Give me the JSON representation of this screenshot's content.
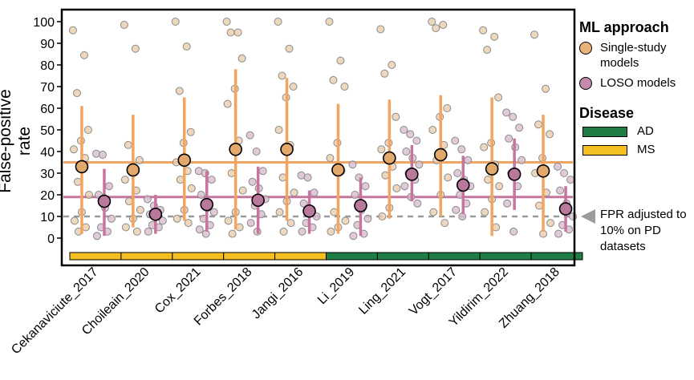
{
  "chart_data": {
    "type": "scatter",
    "ylabel": "False-positive rate",
    "ylim": [
      -5,
      105
    ],
    "yticks": [
      0,
      10,
      20,
      30,
      40,
      50,
      60,
      70,
      80,
      90,
      100
    ],
    "categories": [
      "Cekanaviciute_2017",
      "Choileain_2020",
      "Cox_2021",
      "Forbes_2018",
      "Jangi_2016",
      "Li_2019",
      "Ling_2021",
      "Vogt_2017",
      "Yildirim_2022",
      "Zhuang_2018"
    ],
    "disease_by_category": [
      "MS",
      "MS",
      "MS",
      "MS",
      "MS",
      "AD",
      "AD",
      "AD",
      "AD",
      "AD"
    ],
    "series": [
      {
        "name": "Single-study models",
        "color": "#f2a560",
        "means": [
          33,
          31.5,
          36,
          41,
          41,
          31.5,
          37,
          38.5,
          32,
          31
        ],
        "err_low": [
          2,
          5,
          8,
          4,
          8,
          2,
          9,
          10,
          1,
          3
        ],
        "err_high": [
          61,
          57,
          65,
          78,
          74,
          62,
          64,
          66,
          65,
          57
        ],
        "overall_mean": 35,
        "points": [
          [
            96,
            84.5,
            67,
            50,
            45,
            41,
            37,
            26,
            20,
            12,
            8,
            5,
            3
          ],
          [
            98.5,
            87.5,
            43,
            36,
            31,
            27,
            22,
            17,
            13,
            9,
            5,
            3
          ],
          [
            100,
            88.5,
            68,
            49,
            44,
            35,
            31,
            27,
            23,
            13,
            9,
            7
          ],
          [
            100,
            95,
            95,
            83,
            69,
            62,
            45,
            30,
            22,
            12,
            8,
            5,
            2
          ],
          [
            100,
            87.5,
            75,
            70,
            65,
            50,
            43,
            28,
            21,
            17,
            12,
            7,
            3
          ],
          [
            100,
            82,
            73,
            70,
            44,
            37,
            31,
            12,
            8,
            5,
            3
          ],
          [
            96.5,
            80,
            76,
            56,
            44,
            41,
            33,
            29,
            23,
            14,
            10
          ],
          [
            100,
            98.5,
            97,
            60,
            56,
            50,
            43,
            36,
            28,
            20,
            12,
            7
          ],
          [
            96,
            93,
            87,
            65,
            44,
            42,
            34,
            27,
            24,
            18,
            12,
            5
          ],
          [
            94,
            69,
            52.5,
            48,
            37,
            30,
            21,
            15,
            7,
            2
          ]
        ]
      },
      {
        "name": "LOSO models",
        "color": "#c6759f",
        "means": [
          17,
          11,
          15.5,
          17.5,
          12.5,
          15,
          29.5,
          24.5,
          29.5,
          13.5
        ],
        "err_low": [
          1,
          2,
          3,
          2,
          2,
          1,
          17,
          11,
          13,
          3
        ],
        "err_high": [
          32,
          20,
          31,
          33,
          22,
          28,
          43,
          38,
          46,
          24
        ],
        "overall_mean": 19,
        "points": [
          [
            39,
            38.5,
            24,
            20,
            14,
            9,
            5,
            3,
            1
          ],
          [
            18,
            15,
            13,
            11,
            10,
            8,
            6,
            5,
            3
          ],
          [
            31,
            30,
            27,
            20,
            14,
            12,
            9,
            6,
            4,
            2
          ],
          [
            47.5,
            40,
            31,
            26,
            23,
            18,
            15,
            11,
            7,
            3
          ],
          [
            29,
            28,
            21,
            16,
            12,
            10,
            7,
            5,
            3
          ],
          [
            34,
            28,
            24,
            20,
            13,
            9,
            6,
            2,
            1
          ],
          [
            50,
            48,
            45,
            40,
            37,
            34,
            30,
            27,
            24,
            19,
            16
          ],
          [
            45,
            41,
            36,
            30,
            27,
            24,
            20,
            16,
            13,
            10
          ],
          [
            58,
            56,
            51,
            46,
            42,
            36,
            30,
            24,
            16,
            3
          ],
          [
            33,
            30,
            27,
            22,
            16,
            10,
            6,
            4,
            2
          ]
        ]
      }
    ],
    "reference_line": {
      "value": 10,
      "style": "dashed",
      "color": "#999999",
      "label": "FPR adjusted to 10% on PD datasets"
    },
    "grid": false,
    "legend_position": "right"
  },
  "legend": {
    "ml_title": "ML approach",
    "single_label": "Single-study models",
    "loso_label": "LOSO models",
    "disease_title": "Disease",
    "diseases": [
      {
        "label": "AD",
        "color": "#1e7d44"
      },
      {
        "label": "MS",
        "color": "#f4c021"
      }
    ]
  },
  "annotation": {
    "fpr_text": "FPR adjusted to 10% on PD datasets"
  }
}
